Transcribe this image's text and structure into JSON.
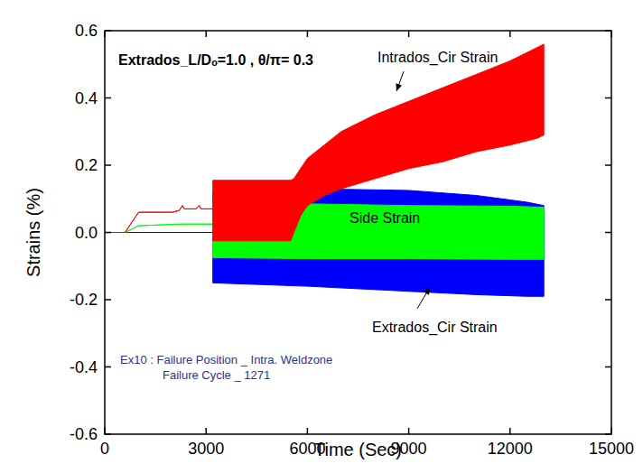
{
  "chart_data": {
    "type": "area",
    "title": "Extrados_L/Dₒ=1.0 , θ/π= 0.3",
    "x_label": "Time (Sec)",
    "y_label": "Strains (%)",
    "xlim": [
      0,
      15000
    ],
    "xticks": [
      0,
      3000,
      6000,
      9000,
      12000,
      15000
    ],
    "ylim": [
      -0.6,
      0.6
    ],
    "yticks": [
      -0.6,
      -0.4,
      -0.2,
      {
        "value": 0,
        "label": "0.0"
      },
      0.2,
      0.4,
      0.6
    ],
    "annotations": [
      "Ex10 : Failure Position _ Intra. Weldzone",
      "Failure Cycle _ 1271"
    ],
    "series": [
      {
        "name": "Extrados_Cir Strain",
        "color": "#0000ff",
        "x": [
          0,
          3200,
          3200,
          6000,
          9000,
          11000,
          12500,
          13000
        ],
        "upper": [
          0,
          0,
          0.12,
          0.13,
          0.125,
          0.11,
          0.09,
          0.08
        ],
        "lower": [
          0,
          0,
          -0.15,
          -0.16,
          -0.175,
          -0.185,
          -0.19,
          -0.19
        ]
      },
      {
        "name": "Side Strain",
        "color": "#00ff00",
        "x": [
          0,
          600,
          1000,
          2300,
          3200,
          3200,
          6000,
          9000,
          12000,
          13000
        ],
        "upper": [
          0,
          0,
          0.02,
          0.025,
          0.025,
          0.085,
          0.085,
          0.08,
          0.078,
          0.075
        ],
        "lower": [
          0,
          0,
          0.02,
          0.025,
          0.025,
          -0.075,
          -0.078,
          -0.078,
          -0.08,
          -0.08
        ]
      },
      {
        "name": "Intrados_Cir Strain",
        "color": "#ff0000",
        "x": [
          0,
          600,
          1000,
          2000,
          2200,
          2300,
          2350,
          2700,
          2800,
          2850,
          3200,
          3200,
          5500,
          5600,
          5800,
          6000,
          6500,
          7000,
          8000,
          9000,
          10000,
          11000,
          12000,
          12800,
          13000
        ],
        "upper": [
          0,
          0,
          0.06,
          0.06,
          0.065,
          0.08,
          0.07,
          0.07,
          0.08,
          0.07,
          0.07,
          0.155,
          0.155,
          0.16,
          0.19,
          0.22,
          0.26,
          0.3,
          0.35,
          0.39,
          0.43,
          0.47,
          0.51,
          0.55,
          0.56
        ],
        "lower": [
          0,
          0,
          0.06,
          0.06,
          0.065,
          0.08,
          0.07,
          0.07,
          0.08,
          0.07,
          0.07,
          -0.025,
          -0.025,
          0.0,
          0.05,
          0.08,
          0.11,
          0.13,
          0.16,
          0.19,
          0.21,
          0.24,
          0.26,
          0.28,
          0.29
        ]
      }
    ]
  }
}
